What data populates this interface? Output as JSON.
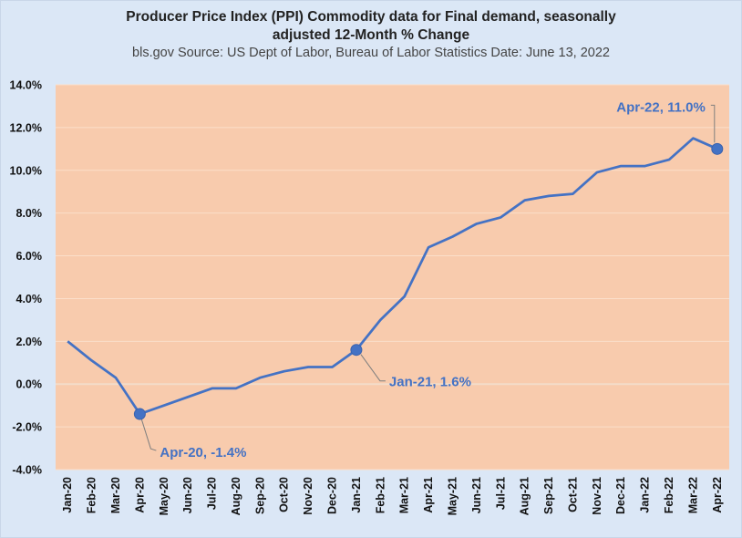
{
  "title": {
    "line1": "Producer Price Index (PPI) Commodity data for Final demand, seasonally",
    "line2": "adjusted 12-Month % Change",
    "source": "bls.gov  Source: US Dept of Labor, Bureau of Labor Statistics Date: June 13, 2022"
  },
  "colors": {
    "background": "#dbe7f6",
    "plot_area": "#f8cbad",
    "line": "#4472c4",
    "label": "#4472c4"
  },
  "chart_data": {
    "type": "line",
    "title": "Producer Price Index (PPI) Commodity data for Final demand, seasonally adjusted 12-Month % Change",
    "categories": [
      "Jan-20",
      "Feb-20",
      "Mar-20",
      "Apr-20",
      "May-20",
      "Jun-20",
      "Jul-20",
      "Aug-20",
      "Sep-20",
      "Oct-20",
      "Nov-20",
      "Dec-20",
      "Jan-21",
      "Feb-21",
      "Mar-21",
      "Apr-21",
      "May-21",
      "Jun-21",
      "Jul-21",
      "Aug-21",
      "Sep-21",
      "Oct-21",
      "Nov-21",
      "Dec-21",
      "Jan-22",
      "Feb-22",
      "Mar-22",
      "Apr-22"
    ],
    "values": [
      2.0,
      1.1,
      0.3,
      -1.4,
      -1.0,
      -0.6,
      -0.2,
      -0.2,
      0.3,
      0.6,
      0.8,
      0.8,
      1.6,
      3.0,
      4.1,
      6.4,
      6.9,
      7.5,
      7.8,
      8.6,
      8.8,
      8.9,
      9.9,
      10.2,
      10.2,
      10.5,
      11.5,
      11.0
    ],
    "ylim": [
      -4.0,
      14.0
    ],
    "yticks": [
      "-4.0%",
      "-2.0%",
      "0.0%",
      "2.0%",
      "4.0%",
      "6.0%",
      "8.0%",
      "10.0%",
      "12.0%",
      "14.0%"
    ],
    "grid": true,
    "legend": "none",
    "annotations": [
      {
        "index": 3,
        "text": "Apr-20, -1.4%"
      },
      {
        "index": 12,
        "text": "Jan-21, 1.6%"
      },
      {
        "index": 27,
        "text": "Apr-22, 11.0%"
      }
    ]
  }
}
